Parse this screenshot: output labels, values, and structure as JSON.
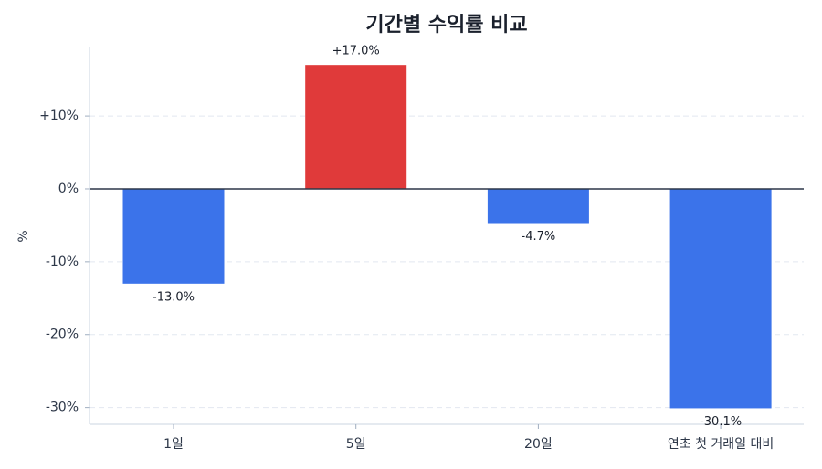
{
  "chart_data": {
    "type": "bar",
    "title": "기간별 수익률 비교",
    "y_label": "%",
    "categories": [
      "1일",
      "5일",
      "20일",
      "연초 첫 거래일 대비"
    ],
    "values": [
      -13.0,
      17.0,
      -4.7,
      -30.1
    ],
    "value_labels": [
      "-13.0%",
      "+17.0%",
      "-4.7%",
      "-30.1%"
    ],
    "colors": [
      "#3b73ea",
      "#e03a3a",
      "#3b73ea",
      "#3b73ea"
    ],
    "ylim": [
      -32.3,
      19.4
    ],
    "yticks": [
      {
        "value": 10,
        "label": "+10%"
      },
      {
        "value": 0,
        "label": "0%"
      },
      {
        "value": -10,
        "label": "-10%"
      },
      {
        "value": -20,
        "label": "-20%"
      },
      {
        "value": -30,
        "label": "-30%"
      }
    ],
    "grid": true
  }
}
